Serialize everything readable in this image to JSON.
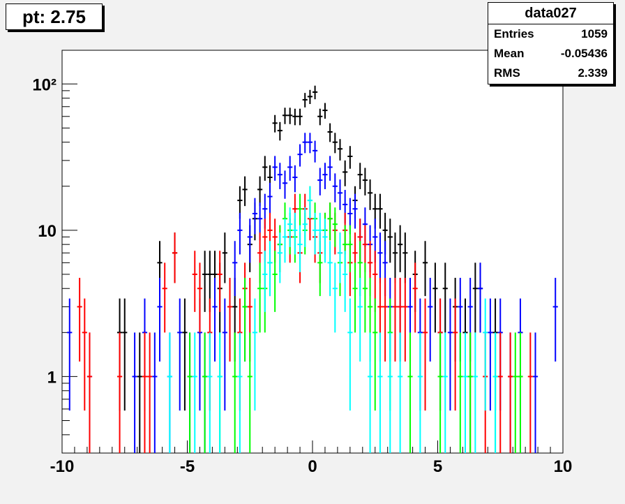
{
  "title": "pt: 2.75",
  "stats": {
    "name": "data027",
    "entries_label": "Entries",
    "entries": "1059",
    "mean_label": "Mean",
    "mean": "-0.05436",
    "rms_label": "RMS",
    "rms": "2.339"
  },
  "chart_data": {
    "type": "scatter",
    "title": "pt: 2.75",
    "xlabel": "",
    "ylabel": "",
    "xlim": [
      -10,
      10
    ],
    "ylim": [
      0.3,
      170
    ],
    "ylog": true,
    "bin_width": 0.2,
    "x_ticks": [
      "-10",
      "-5",
      "0",
      "5",
      "10"
    ],
    "y_ticks": [
      "1",
      "10",
      "10²"
    ],
    "y_tick_values": [
      1,
      10,
      100
    ],
    "legend": "none",
    "series": [
      {
        "color": "#000000",
        "x": [
          -7.7,
          -7.5,
          -6.9,
          -6.1,
          -5.5,
          -5.1,
          -4.3,
          -4.1,
          -3.9,
          -3.7,
          -3.5,
          -3.1,
          -2.9,
          -2.7,
          -2.5,
          -2.3,
          -2.1,
          -1.9,
          -1.7,
          -1.5,
          -1.3,
          -1.1,
          -0.9,
          -0.7,
          -0.5,
          -0.3,
          -0.1,
          0.1,
          0.3,
          0.5,
          0.7,
          0.9,
          1.1,
          1.3,
          1.5,
          1.7,
          1.9,
          2.1,
          2.3,
          2.5,
          2.7,
          2.9,
          3.1,
          3.3,
          3.5,
          3.7,
          4.1,
          4.5,
          4.9,
          5.3,
          5.7,
          6.1,
          6.5,
          6.7,
          7.3
        ],
        "y": [
          2,
          2,
          1,
          6,
          7,
          2,
          5,
          5,
          5,
          4,
          7,
          3,
          16,
          19,
          8,
          12,
          19,
          27,
          23,
          54,
          48,
          61,
          61,
          60,
          60,
          78,
          82,
          88,
          60,
          66,
          47,
          40,
          36,
          25,
          32,
          16,
          24,
          22,
          18,
          14,
          14,
          10,
          9,
          7,
          8,
          7,
          5,
          6,
          4,
          4,
          3,
          2,
          4,
          4,
          2
        ]
      },
      {
        "color": "#0000ff",
        "x": [
          -9.7,
          -8.9,
          -7.1,
          -6.7,
          -6.3,
          -6.1,
          -5.7,
          -5.3,
          -4.9,
          -4.5,
          -4.3,
          -3.9,
          -3.5,
          -3.1,
          -2.9,
          -2.7,
          -2.5,
          -2.3,
          -2.1,
          -1.9,
          -1.7,
          -1.5,
          -1.3,
          -1.1,
          -0.9,
          -0.7,
          -0.5,
          -0.3,
          -0.1,
          0.1,
          0.3,
          0.5,
          0.7,
          0.9,
          1.1,
          1.3,
          1.5,
          1.7,
          1.9,
          2.1,
          2.3,
          2.5,
          2.7,
          2.9,
          3.1,
          3.5,
          3.9,
          4.3,
          4.7,
          5.1,
          5.5,
          5.9,
          6.3,
          6.7,
          7.1,
          7.5,
          7.9,
          8.3,
          8.9,
          9.7
        ],
        "y": [
          2,
          1,
          1,
          2,
          1,
          3,
          1,
          2,
          1,
          2,
          1,
          3,
          2,
          6,
          10,
          3,
          9,
          13,
          12,
          14,
          17,
          27,
          24,
          21,
          27,
          23,
          33,
          40,
          40,
          35,
          22,
          24,
          27,
          20,
          18,
          15,
          13,
          14,
          9,
          11,
          8,
          9,
          7,
          6,
          3,
          3,
          3,
          2,
          3,
          2,
          2,
          3,
          3,
          4,
          2,
          2,
          1,
          2,
          1,
          3
        ]
      },
      {
        "color": "#ff0000",
        "x": [
          -9.3,
          -9.1,
          -8.9,
          -7.7,
          -6.7,
          -6.5,
          -5.9,
          -5.5,
          -4.7,
          -4.5,
          -4.1,
          -3.7,
          -3.3,
          -2.9,
          -2.7,
          -2.5,
          -2.1,
          -1.9,
          -1.7,
          -1.5,
          -1.3,
          -0.9,
          -0.7,
          -0.5,
          -0.3,
          -0.1,
          0.1,
          0.3,
          0.5,
          0.7,
          0.9,
          1.1,
          1.3,
          1.5,
          1.7,
          1.9,
          2.1,
          2.3,
          2.5,
          2.7,
          2.9,
          3.3,
          3.5,
          3.7,
          4.1,
          4.5,
          5.1,
          5.7,
          6.3,
          6.9,
          7.5,
          7.9,
          8.3,
          8.7
        ],
        "y": [
          3,
          2,
          1,
          1,
          1,
          1,
          4,
          7,
          5,
          4,
          2,
          5,
          3,
          2,
          4,
          3,
          7,
          9,
          10,
          9,
          8,
          9,
          14,
          7,
          14,
          12,
          9,
          7,
          10,
          12,
          10,
          7,
          10,
          6,
          7,
          9,
          8,
          6,
          5,
          3,
          3,
          3,
          3,
          3,
          4,
          2,
          2,
          2,
          1,
          1,
          1,
          1,
          1,
          1
        ]
      },
      {
        "color": "#00ff00",
        "x": [
          -4.9,
          -4.3,
          -3.7,
          -3.1,
          -2.7,
          -2.5,
          -2.1,
          -1.9,
          -1.7,
          -1.5,
          -1.3,
          -1.1,
          -0.9,
          -0.7,
          -0.5,
          -0.3,
          -0.1,
          0.1,
          0.3,
          0.5,
          0.7,
          0.9,
          1.1,
          1.3,
          1.5,
          1.7,
          1.9,
          2.1,
          2.3,
          2.5,
          3.1,
          3.9,
          5.1,
          5.9,
          6.3,
          7.3,
          8.1,
          8.3
        ],
        "y": [
          1,
          1,
          1,
          1,
          3,
          1,
          4,
          4,
          6,
          5,
          8,
          12,
          10,
          9,
          14,
          10,
          16,
          12,
          6,
          10,
          12,
          11,
          6,
          8,
          8,
          4,
          6,
          4,
          3,
          2,
          2,
          1,
          1,
          1,
          1,
          1,
          1,
          1
        ]
      },
      {
        "color": "#00ffff",
        "x": [
          -5.7,
          -4.7,
          -4.1,
          -3.7,
          -2.9,
          -2.3,
          -1.9,
          -1.7,
          -1.3,
          -1.1,
          -0.9,
          -0.7,
          -0.5,
          -0.3,
          -0.1,
          0.1,
          0.3,
          0.5,
          0.7,
          0.9,
          1.1,
          1.3,
          1.5,
          1.9,
          2.3,
          2.7,
          3.1,
          3.5,
          4.3,
          5.3,
          6.1,
          6.5,
          6.9,
          7.3
        ],
        "y": [
          1,
          1,
          1,
          1,
          1,
          2,
          5,
          6,
          7,
          9,
          11,
          10,
          8,
          11,
          16,
          10,
          10,
          9,
          6,
          4,
          7,
          5,
          2,
          3,
          1,
          1,
          1,
          1,
          1,
          1,
          1,
          1,
          2,
          1
        ]
      }
    ]
  }
}
